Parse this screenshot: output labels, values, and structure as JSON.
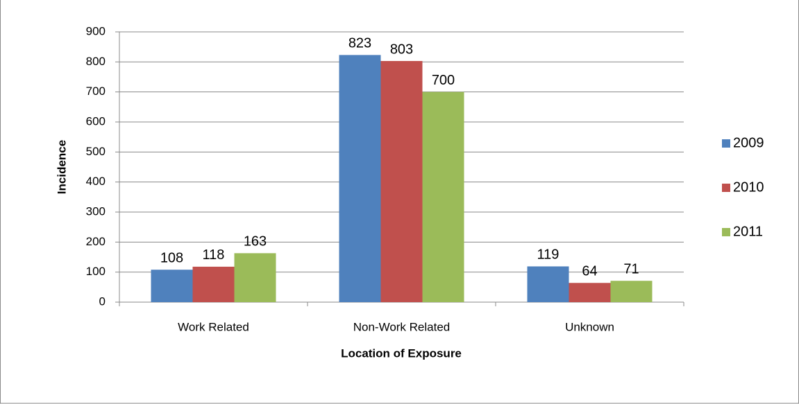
{
  "chart_data": {
    "type": "bar",
    "x_label": "Location of Exposure",
    "y_label": "Incidence",
    "categories": [
      "Work Related",
      "Non-Work Related",
      "Unknown"
    ],
    "series": [
      {
        "name": "2009",
        "color": "#4f81bd",
        "values": [
          108,
          823,
          119
        ]
      },
      {
        "name": "2010",
        "color": "#c0504d",
        "values": [
          118,
          803,
          64
        ]
      },
      {
        "name": "2011",
        "color": "#9bbb59",
        "values": [
          163,
          700,
          71
        ]
      }
    ],
    "ylim": [
      0,
      900
    ],
    "yticks": [
      0,
      100,
      200,
      300,
      400,
      500,
      600,
      700,
      800,
      900
    ],
    "grid": true,
    "legend": "right",
    "data_labels": true
  }
}
